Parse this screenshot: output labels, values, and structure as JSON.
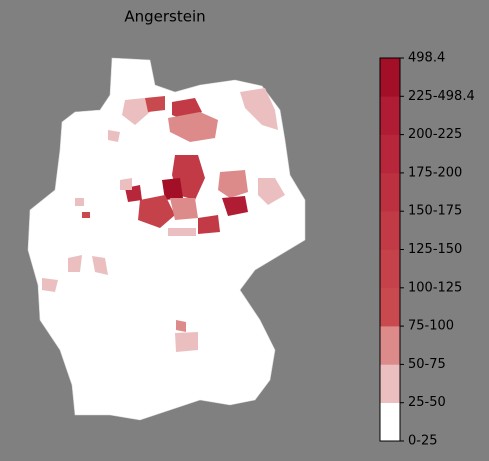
{
  "title": "Angerstein",
  "colorbar": {
    "labels": [
      "0-25",
      "25-50",
      "50-75",
      "75-100",
      "100-125",
      "125-150",
      "150-175",
      "175-200",
      "200-225",
      "225-498.4",
      "498.4"
    ],
    "colors": [
      "#ffffff",
      "#ebbfbf",
      "#dd8a8a",
      "#c94a4e",
      "#c6424a",
      "#c23a45",
      "#bd3040",
      "#b7263a",
      "#b01c34",
      "#a30f27"
    ]
  }
}
